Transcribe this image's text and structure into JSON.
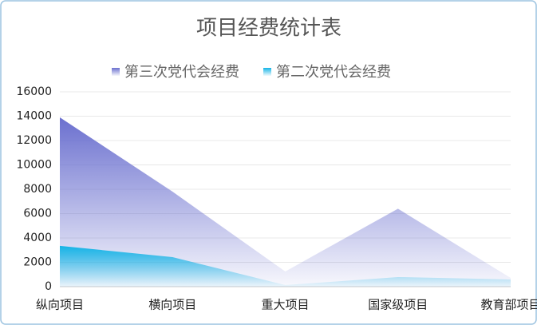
{
  "chart_data": {
    "type": "area",
    "title": "项目经费统计表",
    "categories": [
      "纵向项目",
      "横向项目",
      "重大项目",
      "国家级项目",
      "教育部项目"
    ],
    "series": [
      {
        "name": "第三次党代会经费",
        "color": "#6b70cf",
        "values": [
          13900,
          7800,
          1250,
          6400,
          720
        ]
      },
      {
        "name": "第二次党代会经费",
        "color": "#15b4e6",
        "values": [
          3350,
          2430,
          130,
          790,
          590
        ]
      }
    ],
    "ylim": [
      0,
      16000
    ],
    "yticks": [
      0,
      2000,
      4000,
      6000,
      8000,
      10000,
      12000,
      14000,
      16000
    ],
    "grid": true,
    "legend": "top"
  }
}
